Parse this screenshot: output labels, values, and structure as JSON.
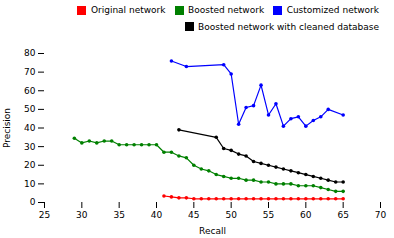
{
  "chart_data": {
    "type": "line",
    "xlabel": "Recall",
    "ylabel": "Precision",
    "xlim": [
      25,
      70
    ],
    "ylim": [
      0,
      80
    ],
    "xticks": [
      25,
      30,
      35,
      40,
      45,
      50,
      55,
      60,
      65,
      70
    ],
    "yticks": [
      0,
      10,
      20,
      30,
      40,
      50,
      60,
      70,
      80
    ],
    "grid": false,
    "legend": "upper right",
    "marker": "o",
    "line_style": "solid",
    "series": [
      {
        "name": "Original network",
        "color": "red",
        "x": [
          41,
          42,
          43,
          44,
          45,
          46,
          47,
          48,
          49,
          50,
          51,
          52,
          53,
          54,
          55,
          56,
          57,
          58,
          59,
          60,
          61,
          62,
          63,
          64,
          65
        ],
        "values": [
          3.5,
          3,
          2.5,
          2.5,
          2,
          2,
          2,
          2,
          2,
          2,
          2,
          2,
          2,
          2,
          2,
          2,
          2,
          2,
          2,
          2,
          2,
          2,
          2,
          2,
          2
        ]
      },
      {
        "name": "Boosted network",
        "color": "green",
        "x": [
          29,
          30,
          31,
          32,
          33,
          34,
          35,
          36,
          37,
          38,
          39,
          40,
          41,
          42,
          43,
          44,
          45,
          46,
          47,
          48,
          49,
          50,
          51,
          52,
          53,
          54,
          55,
          56,
          57,
          58,
          59,
          60,
          61,
          62,
          63,
          64,
          65
        ],
        "values": [
          34.5,
          32,
          33,
          32,
          33,
          33,
          31,
          31,
          31,
          31,
          31,
          31,
          27,
          27,
          25,
          24,
          20,
          18,
          17,
          15,
          14,
          13,
          13,
          12,
          12,
          11,
          11,
          10,
          10,
          10,
          9,
          9,
          9,
          8,
          7,
          6,
          6
        ]
      },
      {
        "name": "Customized network",
        "color": "blue",
        "x": [
          42,
          44,
          49,
          50,
          51,
          52,
          53,
          54,
          55,
          56,
          57,
          58,
          59,
          60,
          61,
          62,
          63,
          65
        ],
        "values": [
          76,
          73,
          74,
          69,
          42,
          51,
          52,
          63,
          47,
          53,
          41,
          45,
          46,
          41,
          44,
          46,
          50,
          47
        ]
      },
      {
        "name": "Boosted network with cleaned database",
        "color": "black",
        "x": [
          43,
          48,
          49,
          50,
          51,
          52,
          53,
          54,
          55,
          56,
          57,
          58,
          59,
          60,
          61,
          62,
          63,
          64,
          65
        ],
        "values": [
          39,
          35,
          29,
          28,
          26,
          25,
          22,
          21,
          20,
          19,
          18,
          17,
          16,
          15,
          14,
          13,
          12,
          11,
          11
        ]
      }
    ]
  }
}
